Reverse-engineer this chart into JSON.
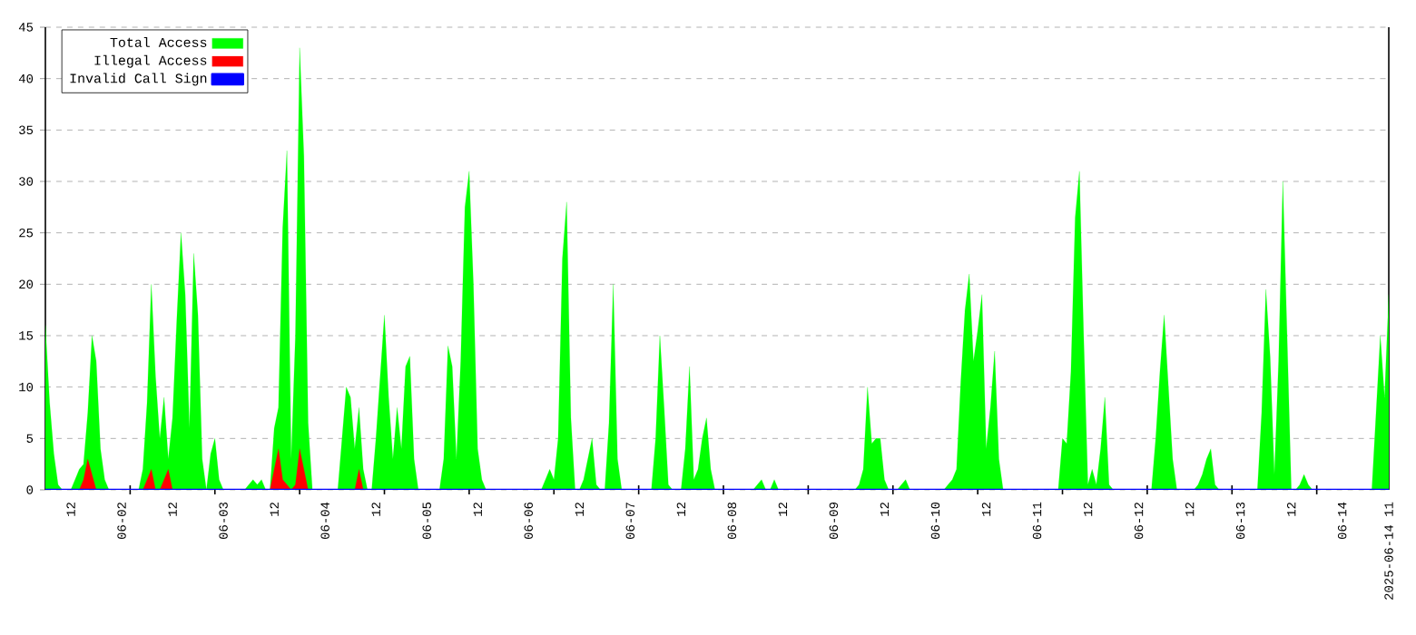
{
  "chart_data": {
    "type": "area",
    "xlim": [
      "2025-06-01T06:00",
      "2025-06-14T11:00"
    ],
    "ylim": [
      0,
      45
    ],
    "yticks": [
      0,
      5,
      10,
      15,
      20,
      25,
      30,
      35,
      40,
      45
    ],
    "xticks": [
      {
        "value": "2025-06-01T12:00",
        "label": "12"
      },
      {
        "value": "2025-06-02T00:00",
        "label": "06-02"
      },
      {
        "value": "2025-06-02T12:00",
        "label": "12"
      },
      {
        "value": "2025-06-03T00:00",
        "label": "06-03"
      },
      {
        "value": "2025-06-03T12:00",
        "label": "12"
      },
      {
        "value": "2025-06-04T00:00",
        "label": "06-04"
      },
      {
        "value": "2025-06-04T12:00",
        "label": "12"
      },
      {
        "value": "2025-06-05T00:00",
        "label": "06-05"
      },
      {
        "value": "2025-06-05T12:00",
        "label": "12"
      },
      {
        "value": "2025-06-06T00:00",
        "label": "06-06"
      },
      {
        "value": "2025-06-06T12:00",
        "label": "12"
      },
      {
        "value": "2025-06-07T00:00",
        "label": "06-07"
      },
      {
        "value": "2025-06-07T12:00",
        "label": "12"
      },
      {
        "value": "2025-06-08T00:00",
        "label": "06-08"
      },
      {
        "value": "2025-06-08T12:00",
        "label": "12"
      },
      {
        "value": "2025-06-09T00:00",
        "label": "06-09"
      },
      {
        "value": "2025-06-09T12:00",
        "label": "12"
      },
      {
        "value": "2025-06-10T00:00",
        "label": "06-10"
      },
      {
        "value": "2025-06-10T12:00",
        "label": "12"
      },
      {
        "value": "2025-06-11T00:00",
        "label": "06-11"
      },
      {
        "value": "2025-06-11T12:00",
        "label": "12"
      },
      {
        "value": "2025-06-12T00:00",
        "label": "06-12"
      },
      {
        "value": "2025-06-12T12:00",
        "label": "12"
      },
      {
        "value": "2025-06-13T00:00",
        "label": "06-13"
      },
      {
        "value": "2025-06-13T12:00",
        "label": "12"
      },
      {
        "value": "2025-06-14T00:00",
        "label": "06-14"
      },
      {
        "value": "2025-06-14T11:00",
        "label": "2025-06-14 11"
      },
      {
        "value": "2025-06-02T02:00",
        "label": null
      },
      {
        "value": "2025-06-02T22:00",
        "label": null
      },
      {
        "value": "2025-06-03T18:00",
        "label": null
      },
      {
        "value": "2025-06-04T14:00",
        "label": null
      },
      {
        "value": "2025-06-05T10:00",
        "label": null
      },
      {
        "value": "2025-06-06T06:00",
        "label": null
      },
      {
        "value": "2025-06-07T02:00",
        "label": null
      },
      {
        "value": "2025-06-07T22:00",
        "label": null
      },
      {
        "value": "2025-06-08T18:00",
        "label": null
      },
      {
        "value": "2025-06-09T14:00",
        "label": null
      },
      {
        "value": "2025-06-10T10:00",
        "label": null
      },
      {
        "value": "2025-06-11T06:00",
        "label": null
      },
      {
        "value": "2025-06-12T02:00",
        "label": null
      },
      {
        "value": "2025-06-12T22:00",
        "label": null
      },
      {
        "value": "2025-06-13T18:00",
        "label": null
      }
    ],
    "grid": "y",
    "legend": "top left",
    "series": [
      {
        "name": "Total Access",
        "color": "#00ff00",
        "x": [
          "2025-06-01T06:00",
          "2025-06-01T07:00",
          "2025-06-01T08:00",
          "2025-06-01T09:00",
          "2025-06-01T10:00",
          "2025-06-01T12:00",
          "2025-06-01T13:00",
          "2025-06-01T14:00",
          "2025-06-01T15:00",
          "2025-06-01T16:00",
          "2025-06-01T17:00",
          "2025-06-01T18:00",
          "2025-06-01T19:00",
          "2025-06-01T20:00",
          "2025-06-01T21:00",
          "2025-06-02T04:00",
          "2025-06-02T05:00",
          "2025-06-02T06:00",
          "2025-06-02T07:00",
          "2025-06-02T08:00",
          "2025-06-02T09:00",
          "2025-06-02T10:00",
          "2025-06-02T11:00",
          "2025-06-02T12:00",
          "2025-06-02T13:00",
          "2025-06-02T14:00",
          "2025-06-02T15:00",
          "2025-06-02T16:00",
          "2025-06-02T17:00",
          "2025-06-02T18:00",
          "2025-06-02T19:00",
          "2025-06-02T20:00",
          "2025-06-02T21:00",
          "2025-06-02T22:00",
          "2025-06-02T23:00",
          "2025-06-03T00:00",
          "2025-06-03T05:00",
          "2025-06-03T06:00",
          "2025-06-03T07:00",
          "2025-06-03T08:00",
          "2025-06-03T09:00",
          "2025-06-03T10:00",
          "2025-06-03T11:00",
          "2025-06-03T12:00",
          "2025-06-03T13:00",
          "2025-06-03T14:00",
          "2025-06-03T15:00",
          "2025-06-03T16:00",
          "2025-06-03T17:00",
          "2025-06-03T18:00",
          "2025-06-03T19:00",
          "2025-06-03T20:00",
          "2025-06-03T21:00",
          "2025-06-04T03:00",
          "2025-06-04T04:00",
          "2025-06-04T05:00",
          "2025-06-04T06:00",
          "2025-06-04T07:00",
          "2025-06-04T08:00",
          "2025-06-04T09:00",
          "2025-06-04T10:00",
          "2025-06-04T11:00",
          "2025-06-04T12:00",
          "2025-06-04T13:00",
          "2025-06-04T14:00",
          "2025-06-04T15:00",
          "2025-06-04T16:00",
          "2025-06-04T17:00",
          "2025-06-04T18:00",
          "2025-06-04T19:00",
          "2025-06-04T20:00",
          "2025-06-04T21:00",
          "2025-06-04T22:00",
          "2025-06-05T03:00",
          "2025-06-05T04:00",
          "2025-06-05T05:00",
          "2025-06-05T06:00",
          "2025-06-05T07:00",
          "2025-06-05T08:00",
          "2025-06-05T09:00",
          "2025-06-05T10:00",
          "2025-06-05T11:00",
          "2025-06-05T12:00",
          "2025-06-05T13:00",
          "2025-06-05T14:00",
          "2025-06-06T03:00",
          "2025-06-06T04:00",
          "2025-06-06T05:00",
          "2025-06-06T06:00",
          "2025-06-06T07:00",
          "2025-06-06T08:00",
          "2025-06-06T09:00",
          "2025-06-06T10:00",
          "2025-06-06T11:00",
          "2025-06-06T12:00",
          "2025-06-06T13:00",
          "2025-06-06T14:00",
          "2025-06-06T15:00",
          "2025-06-06T16:00",
          "2025-06-06T17:00",
          "2025-06-06T18:00",
          "2025-06-06T19:00",
          "2025-06-06T20:00",
          "2025-06-06T21:00",
          "2025-06-06T22:00",
          "2025-06-07T05:00",
          "2025-06-07T06:00",
          "2025-06-07T07:00",
          "2025-06-07T08:00",
          "2025-06-07T09:00",
          "2025-06-07T10:00",
          "2025-06-07T12:00",
          "2025-06-07T13:00",
          "2025-06-07T14:00",
          "2025-06-07T15:00",
          "2025-06-07T16:00",
          "2025-06-07T17:00",
          "2025-06-07T18:00",
          "2025-06-07T19:00",
          "2025-06-07T20:00",
          "2025-06-08T05:00",
          "2025-06-08T06:00",
          "2025-06-08T07:00",
          "2025-06-08T08:00",
          "2025-06-08T09:00",
          "2025-06-08T10:00",
          "2025-06-08T11:00",
          "2025-06-09T05:00",
          "2025-06-09T06:00",
          "2025-06-09T07:00",
          "2025-06-09T08:00",
          "2025-06-09T09:00",
          "2025-06-09T10:00",
          "2025-06-09T11:00",
          "2025-06-09T12:00",
          "2025-06-09T13:00",
          "2025-06-09T15:00",
          "2025-06-09T16:00",
          "2025-06-09T17:00",
          "2025-06-09T18:00",
          "2025-06-10T02:00",
          "2025-06-10T03:00",
          "2025-06-10T04:00",
          "2025-06-10T05:00",
          "2025-06-10T06:00",
          "2025-06-10T07:00",
          "2025-06-10T08:00",
          "2025-06-10T09:00",
          "2025-06-10T10:00",
          "2025-06-10T11:00",
          "2025-06-10T12:00",
          "2025-06-10T13:00",
          "2025-06-10T14:00",
          "2025-06-10T15:00",
          "2025-06-10T16:00",
          "2025-06-11T05:00",
          "2025-06-11T06:00",
          "2025-06-11T07:00",
          "2025-06-11T08:00",
          "2025-06-11T09:00",
          "2025-06-11T10:00",
          "2025-06-11T11:00",
          "2025-06-11T12:00",
          "2025-06-11T13:00",
          "2025-06-11T14:00",
          "2025-06-11T15:00",
          "2025-06-11T16:00",
          "2025-06-11T17:00",
          "2025-06-11T18:00",
          "2025-06-12T03:00",
          "2025-06-12T04:00",
          "2025-06-12T05:00",
          "2025-06-12T06:00",
          "2025-06-12T07:00",
          "2025-06-12T08:00",
          "2025-06-12T09:00",
          "2025-06-12T13:00",
          "2025-06-12T14:00",
          "2025-06-12T15:00",
          "2025-06-12T16:00",
          "2025-06-12T17:00",
          "2025-06-12T18:00",
          "2025-06-12T19:00",
          "2025-06-13T04:00",
          "2025-06-13T05:00",
          "2025-06-13T06:00",
          "2025-06-13T07:00",
          "2025-06-13T08:00",
          "2025-06-13T09:00",
          "2025-06-13T10:00",
          "2025-06-13T11:00",
          "2025-06-13T12:00",
          "2025-06-13T13:00",
          "2025-06-13T14:00",
          "2025-06-13T15:00",
          "2025-06-13T16:00",
          "2025-06-13T17:00",
          "2025-06-14T07:00",
          "2025-06-14T08:00",
          "2025-06-14T09:00",
          "2025-06-14T10:00",
          "2025-06-14T11:00"
        ],
        "values": [
          16,
          8.5,
          3.5,
          0.5,
          0,
          0,
          1,
          2,
          2.5,
          7.5,
          15,
          12.5,
          4,
          1,
          0,
          0,
          2,
          8.5,
          20,
          11,
          5,
          9,
          3,
          7,
          16.5,
          25,
          19,
          6,
          23,
          17,
          3,
          0,
          3.5,
          5,
          1,
          0,
          0,
          0.5,
          1,
          0.5,
          1,
          0,
          0,
          6,
          8,
          25.5,
          33,
          3,
          15,
          43,
          32.5,
          6.5,
          0,
          0,
          5,
          10,
          9,
          4,
          8,
          2,
          0,
          0,
          5,
          11,
          17,
          9,
          3,
          8,
          4,
          12,
          13,
          3,
          0,
          0,
          3,
          14,
          12,
          3,
          12.5,
          27.5,
          31,
          20,
          4,
          1,
          0,
          0,
          1,
          2,
          1,
          5,
          22.5,
          28,
          7,
          0,
          0,
          1,
          3,
          5,
          0.5,
          0,
          0,
          6.5,
          20,
          3,
          0,
          0,
          5,
          15,
          8,
          0.5,
          0,
          0,
          4,
          12,
          1,
          2,
          5,
          7,
          2,
          0,
          0,
          0.5,
          1,
          0,
          0,
          1,
          0,
          0,
          0.5,
          2,
          10,
          4.5,
          5,
          5,
          1,
          0,
          0,
          0.5,
          1,
          0,
          0,
          0.5,
          1,
          2,
          10.5,
          17.5,
          21,
          12.5,
          15.5,
          19,
          4,
          8,
          13.5,
          3,
          0,
          0,
          5,
          4.5,
          11.5,
          26.5,
          31,
          15,
          0.5,
          2,
          0.5,
          4,
          9,
          0.5,
          0,
          0,
          5,
          11.5,
          17,
          10,
          3,
          0,
          0,
          0.5,
          1.5,
          3,
          4,
          0.5,
          0,
          0,
          7.5,
          19.5,
          13,
          1.5,
          12.5,
          30,
          15,
          0,
          0,
          0.5,
          1.5,
          0.5,
          0,
          0,
          7.5,
          15,
          9,
          19
        ]
      },
      {
        "name": "Illegal Access",
        "color": "#ff0000",
        "x": [
          "2025-06-01T06:00",
          "2025-06-01T14:00",
          "2025-06-01T15:00",
          "2025-06-01T16:00",
          "2025-06-01T17:00",
          "2025-06-01T18:00",
          "2025-06-02T05:00",
          "2025-06-02T06:00",
          "2025-06-02T07:00",
          "2025-06-02T08:00",
          "2025-06-02T09:00",
          "2025-06-02T10:00",
          "2025-06-02T11:00",
          "2025-06-02T12:00",
          "2025-06-03T11:00",
          "2025-06-03T12:00",
          "2025-06-03T13:00",
          "2025-06-03T14:00",
          "2025-06-03T15:00",
          "2025-06-03T16:00",
          "2025-06-03T17:00",
          "2025-06-03T18:00",
          "2025-06-03T19:00",
          "2025-06-03T20:00",
          "2025-06-04T07:00",
          "2025-06-04T08:00",
          "2025-06-04T09:00",
          "2025-06-14T11:00"
        ],
        "values": [
          0,
          0,
          1,
          3,
          1.5,
          0,
          0,
          1,
          2,
          0,
          0,
          1,
          2,
          0,
          0,
          2,
          4,
          1,
          0.5,
          0,
          0.5,
          4,
          2,
          0,
          0,
          2,
          0,
          0
        ]
      },
      {
        "name": "Invalid Call Sign",
        "type": "line",
        "color": "#0000ff",
        "x": [
          "2025-06-01T06:00",
          "2025-06-14T11:00"
        ],
        "values": [
          0,
          0
        ]
      }
    ]
  }
}
